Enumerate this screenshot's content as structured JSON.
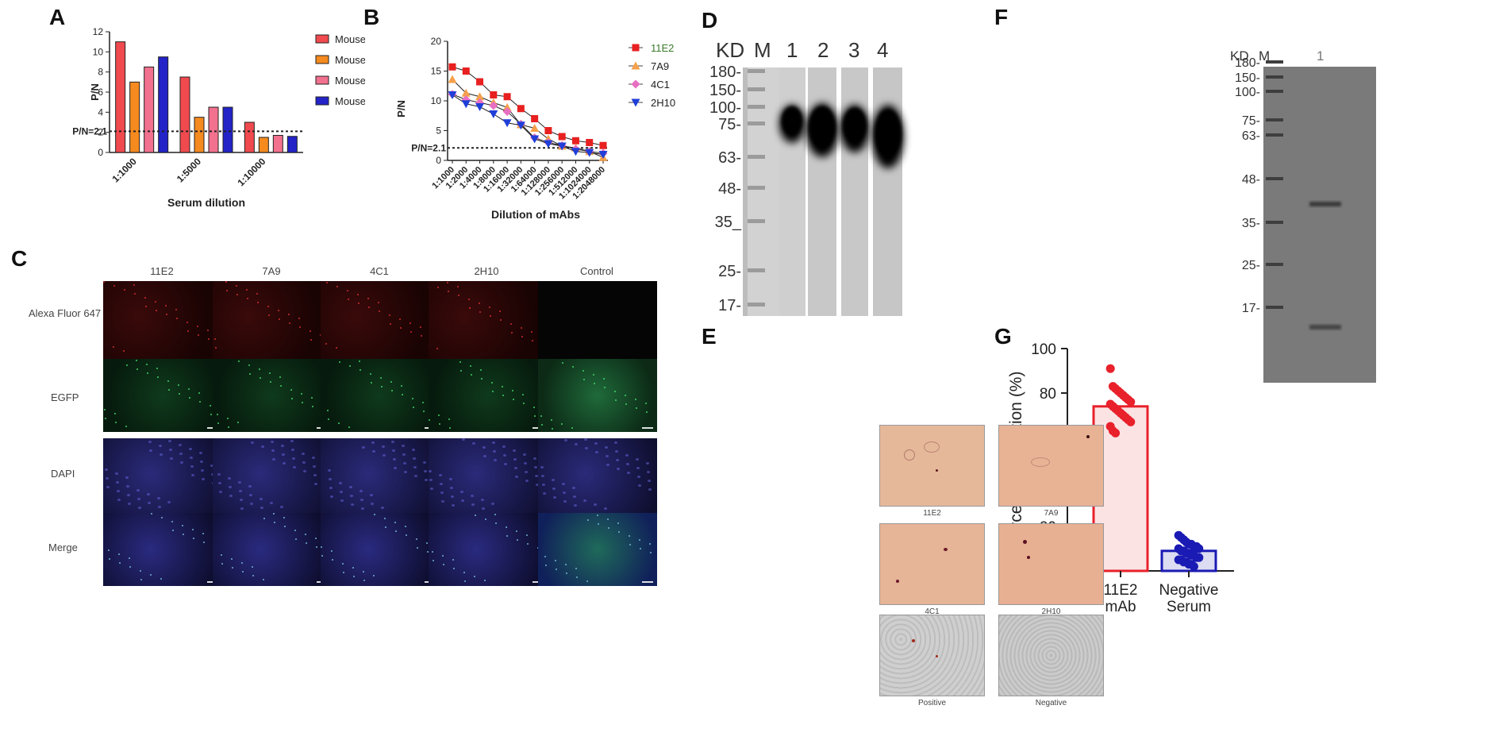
{
  "panel_labels": {
    "A": "A",
    "B": "B",
    "C": "C",
    "D": "D",
    "E": "E",
    "F": "F",
    "G": "G"
  },
  "chart_data": [
    {
      "id": "A",
      "type": "bar",
      "xlabel": "Serum dilution",
      "ylabel": "P/N",
      "categories": [
        "1:1000",
        "1:5000",
        "1:10000"
      ],
      "ylim": [
        0,
        12
      ],
      "yticks": [
        0,
        2,
        4,
        6,
        8,
        10,
        12
      ],
      "series": [
        {
          "name": "Mouse 1",
          "values": [
            11,
            7.5,
            3
          ],
          "color": "#f04a4f"
        },
        {
          "name": "Mouse 2",
          "values": [
            7,
            3.5,
            1.5
          ],
          "color": "#f58a1f"
        },
        {
          "name": "Mouse 3",
          "values": [
            8.5,
            4.5,
            1.7
          ],
          "color": "#f2718e"
        },
        {
          "name": "Mouse 4",
          "values": [
            9.5,
            4.5,
            1.6
          ],
          "color": "#2323c8"
        }
      ],
      "threshold": {
        "value": 2.1,
        "label": "P/N=2.1"
      },
      "legend": "right"
    },
    {
      "id": "B",
      "type": "line",
      "xlabel": "Dilution of mAbs",
      "ylabel": "P/N",
      "categories": [
        "1:1000",
        "1:2000",
        "1:4000",
        "1:8000",
        "1:16000",
        "1:32000",
        "1:64000",
        "1:128000",
        "1:256000",
        "1:512000",
        "1:1024000",
        "1:2048000"
      ],
      "ylim": [
        0,
        20
      ],
      "yticks": [
        0,
        5,
        10,
        15,
        20
      ],
      "series": [
        {
          "name": "11E2",
          "values": [
            15.7,
            15,
            13.2,
            11,
            10.7,
            8.7,
            7,
            5,
            4,
            3.3,
            3,
            2.5
          ],
          "color": "#e82020",
          "marker": "square"
        },
        {
          "name": "7A9",
          "values": [
            13.6,
            11.3,
            10.7,
            9.7,
            8.9,
            6,
            5.4,
            3.6,
            2.4,
            2.1,
            1.5,
            0.5
          ],
          "color": "#f5a04a",
          "marker": "triangle-up"
        },
        {
          "name": "4C1",
          "values": [
            11.1,
            10.2,
            9.7,
            9.2,
            8.2,
            6.1,
            3.8,
            3,
            2.5,
            1.9,
            1.5,
            1.2
          ],
          "color": "#e86fc2",
          "marker": "diamond"
        },
        {
          "name": "2H10",
          "values": [
            11,
            9.5,
            9,
            7.8,
            6.3,
            5.9,
            3.6,
            2.8,
            2.4,
            1.5,
            1.3,
            1
          ],
          "color": "#1f3fd8",
          "marker": "triangle-down"
        }
      ],
      "threshold": {
        "value": 2.1,
        "label": "P/N=2.1"
      },
      "legend": "right"
    },
    {
      "id": "G",
      "type": "bar",
      "xlabel": "",
      "ylabel": "Percent of inhibition (%)",
      "categories": [
        "11E2 mAb",
        "Negative Serum"
      ],
      "category_lines": [
        [
          "11E2",
          "mAb"
        ],
        [
          "Negative",
          "Serum"
        ]
      ],
      "ylim": [
        0,
        100
      ],
      "yticks": [
        0,
        20,
        40,
        60,
        80,
        100
      ],
      "series": [
        {
          "values": [
            74,
            9
          ]
        }
      ],
      "colors": [
        "#e8212b",
        "#1a1ab4"
      ],
      "points": [
        [
          91,
          83,
          82,
          81,
          80,
          79,
          78,
          77,
          76,
          75,
          74,
          73,
          72,
          71,
          70,
          69,
          68,
          67,
          65,
          63,
          62
        ],
        [
          16,
          15,
          14,
          13,
          12,
          12,
          11,
          11,
          10,
          10,
          9,
          9,
          8,
          8,
          7,
          7,
          6,
          6,
          5,
          5,
          4,
          4,
          3,
          3,
          2
        ]
      ]
    }
  ],
  "panel_c": {
    "columns": [
      "11E2",
      "7A9",
      "4C1",
      "2H10",
      "Control"
    ],
    "rows": [
      "Alexa Fluor 647",
      "EGFP",
      "DAPI",
      "Merge"
    ]
  },
  "panel_d": {
    "header": {
      "kd": "KD",
      "m": "M",
      "lanes": [
        "1",
        "2",
        "3",
        "4"
      ]
    },
    "markers": [
      "180-",
      "150-",
      "100-",
      "75-",
      "63-",
      "48-",
      "35_",
      "25-",
      "17-"
    ]
  },
  "panel_e": {
    "labels": [
      "11E2",
      "7A9",
      "4C1",
      "2H10",
      "Positive",
      "Negative"
    ]
  },
  "panel_f": {
    "header": {
      "kd": "KD",
      "m": "M",
      "lane": "1"
    },
    "markers": [
      "180-",
      "150-",
      "100-",
      "75-",
      "63-",
      "48-",
      "35-",
      "25-",
      "17-"
    ]
  }
}
